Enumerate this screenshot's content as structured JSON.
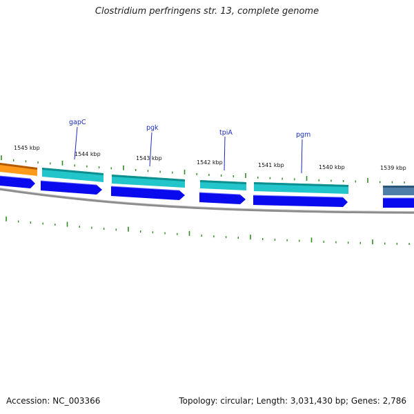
{
  "title": "Clostridium perfringens str. 13, complete genome",
  "footer": {
    "accession": "Accession: NC_003366",
    "summary": "Topology: circular; Length: 3,031,430 bp; Genes: 2,786"
  },
  "colors": {
    "background": "#ffffff",
    "tick": "#2e8b1e",
    "backbone": "#8c8c8c",
    "gene_teal": "#22c5c9",
    "gene_teal_dark": "#0e8f8f",
    "gene_orange": "#ff9a1a",
    "gene_steelblue": "#4f7fa8",
    "cds_blue": "#0a0aee",
    "label_blue": "#1a2bb8"
  },
  "scale_labels": [
    "1545 kbp",
    "1544 kbp",
    "1543 kbp",
    "1542 kbp",
    "1541 kbp",
    "1540 kbp",
    "1539 kbp"
  ],
  "gene_labels": [
    "gapC",
    "pgk",
    "tpiA",
    "pgm"
  ]
}
